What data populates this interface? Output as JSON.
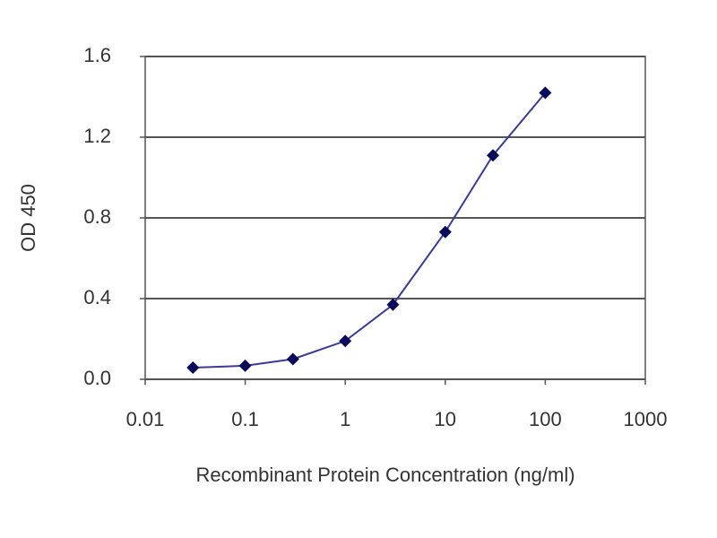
{
  "chart_data": {
    "type": "line",
    "x_label": "Recombinant Protein Concentration (ng/ml)",
    "y_label": "OD 450",
    "x": [
      0.03,
      0.1,
      0.3,
      1,
      3,
      10,
      30,
      100
    ],
    "series": [
      {
        "color": "#3a3a9a",
        "marker_color": "#0a0a5a",
        "values": [
          0.058,
          0.067,
          0.1,
          0.19,
          0.37,
          0.73,
          1.11,
          1.42
        ]
      }
    ],
    "xlim": [
      0.01,
      1000
    ],
    "xticks": [
      0.01,
      0.1,
      1,
      10,
      100,
      1000
    ],
    "xscale": "log",
    "ylim": [
      0,
      1.6
    ],
    "yticks": [
      {
        "value": 0,
        "label": "0.0"
      },
      0.4,
      0.8,
      1.2,
      1.6
    ],
    "grid": true
  }
}
